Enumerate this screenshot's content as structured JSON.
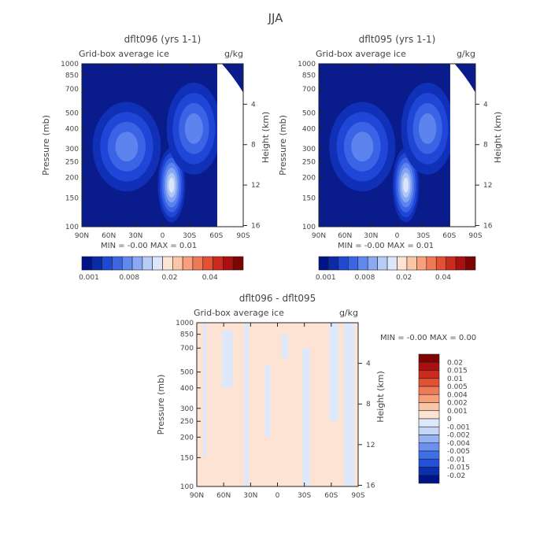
{
  "figure_title": "JJA",
  "colors": {
    "blues": [
      "#0a1c8c",
      "#1030b8",
      "#1f46d6",
      "#3a63e6",
      "#5c83ee",
      "#86a6f3",
      "#b3c7f7",
      "#dbe5fb",
      "#ffffff"
    ],
    "ice_scale": [
      "#001388",
      "#0a2aa6",
      "#1e49d0",
      "#3a66e4",
      "#5f89ee",
      "#8aa9f2",
      "#b7cbf6",
      "#dbe6fb",
      "#fde3d4",
      "#fbc5a8",
      "#f7a07b",
      "#f07a55",
      "#e25134",
      "#cc2a1c",
      "#aa1010",
      "#7e0303"
    ],
    "diff_scale": [
      "#001388",
      "#0c2fb0",
      "#2150da",
      "#3f6fe6",
      "#6a91ef",
      "#97b2f3",
      "#c5d6f7",
      "#dde9fb",
      "#fde3d4",
      "#fbc5a8",
      "#f7a07b",
      "#f07a55",
      "#e25134",
      "#cc2a1c",
      "#aa1010",
      "#7e0303"
    ],
    "diff_pos": "#fde3d4",
    "diff_neg": "#dde9fb"
  },
  "chart_data": [
    {
      "type": "heatmap",
      "title": "dflt096 (yrs 1-1)",
      "field": "Grid-box average ice",
      "units": "g/kg",
      "xlabel": "",
      "ylabel": "Pressure (mb)",
      "ylabel_right": "Height (km)",
      "x_ticks": [
        "90N",
        "60N",
        "30N",
        "0",
        "30S",
        "60S",
        "90S"
      ],
      "x_range": [
        90,
        -90
      ],
      "y_ticks": [
        1000,
        850,
        700,
        500,
        400,
        300,
        250,
        200,
        150,
        100
      ],
      "y_range": [
        1000,
        100
      ],
      "height_ticks": [
        16,
        12,
        8,
        4
      ],
      "stats": "MIN =   -0.00    MAX =    0.01",
      "colorbar_labels": [
        "0.001",
        "0.008",
        "0.02",
        "0.04"
      ],
      "max_value": 0.01,
      "features": [
        {
          "lat": -10,
          "p": 180,
          "value": 0.01,
          "lat_width": 8,
          "p_depth": 70
        },
        {
          "lat": 40,
          "p": 310,
          "value": 0.006,
          "lat_width": 20,
          "p_depth": 150
        },
        {
          "lat": -35,
          "p": 400,
          "value": 0.005,
          "lat_width": 16,
          "p_depth": 200
        }
      ]
    },
    {
      "type": "heatmap",
      "title": "dflt095 (yrs 1-1)",
      "field": "Grid-box average ice",
      "units": "g/kg",
      "xlabel": "",
      "ylabel": "Pressure (mb)",
      "ylabel_right": "Height (km)",
      "x_ticks": [
        "90N",
        "60N",
        "30N",
        "0",
        "30S",
        "60S",
        "90S"
      ],
      "x_range": [
        90,
        -90
      ],
      "y_ticks": [
        1000,
        850,
        700,
        500,
        400,
        300,
        250,
        200,
        150,
        100
      ],
      "y_range": [
        1000,
        100
      ],
      "height_ticks": [
        16,
        12,
        8,
        4
      ],
      "stats": "MIN =   -0.00    MAX =    0.01",
      "colorbar_labels": [
        "0.001",
        "0.008",
        "0.02",
        "0.04"
      ],
      "max_value": 0.01,
      "features": [
        {
          "lat": -10,
          "p": 180,
          "value": 0.01,
          "lat_width": 8,
          "p_depth": 70
        },
        {
          "lat": 40,
          "p": 310,
          "value": 0.006,
          "lat_width": 20,
          "p_depth": 150
        },
        {
          "lat": -35,
          "p": 400,
          "value": 0.005,
          "lat_width": 16,
          "p_depth": 200
        }
      ]
    },
    {
      "type": "heatmap",
      "title": "dflt096 - dflt095",
      "field": "Grid-box average ice",
      "units": "g/kg",
      "xlabel": "",
      "ylabel": "Pressure (mb)",
      "ylabel_right": "Height (km)",
      "x_ticks": [
        "90N",
        "60N",
        "30N",
        "0",
        "30S",
        "60S",
        "90S"
      ],
      "x_range": [
        90,
        -90
      ],
      "y_ticks": [
        1000,
        850,
        700,
        500,
        400,
        300,
        250,
        200,
        150,
        100
      ],
      "y_range": [
        1000,
        100
      ],
      "height_ticks": [
        16,
        12,
        8,
        4
      ],
      "stats": "MIN =   -0.00    MAX =    0.00",
      "colorbar_labels": [
        "0.02",
        "0.015",
        "0.01",
        "0.005",
        "0.004",
        "0.002",
        "0.001",
        "0",
        "-0.001",
        "-0.002",
        "-0.004",
        "-0.005",
        "-0.01",
        "-0.015",
        "-0.02"
      ],
      "negative_bands": [
        {
          "lat_from": 83,
          "lat_to": 79,
          "p_from": 150,
          "p_to": 1000
        },
        {
          "lat_from": 62,
          "lat_to": 50,
          "p_from": 400,
          "p_to": 900
        },
        {
          "lat_from": 37,
          "lat_to": 32,
          "p_from": 100,
          "p_to": 1000
        },
        {
          "lat_from": 14,
          "lat_to": 8,
          "p_from": 200,
          "p_to": 550
        },
        {
          "lat_from": -5,
          "lat_to": -12,
          "p_from": 600,
          "p_to": 850
        },
        {
          "lat_from": -28,
          "lat_to": -36,
          "p_from": 100,
          "p_to": 700
        },
        {
          "lat_from": -58,
          "lat_to": -68,
          "p_from": 250,
          "p_to": 1000
        },
        {
          "lat_from": -74,
          "lat_to": -86,
          "p_from": 100,
          "p_to": 1000
        }
      ]
    }
  ]
}
